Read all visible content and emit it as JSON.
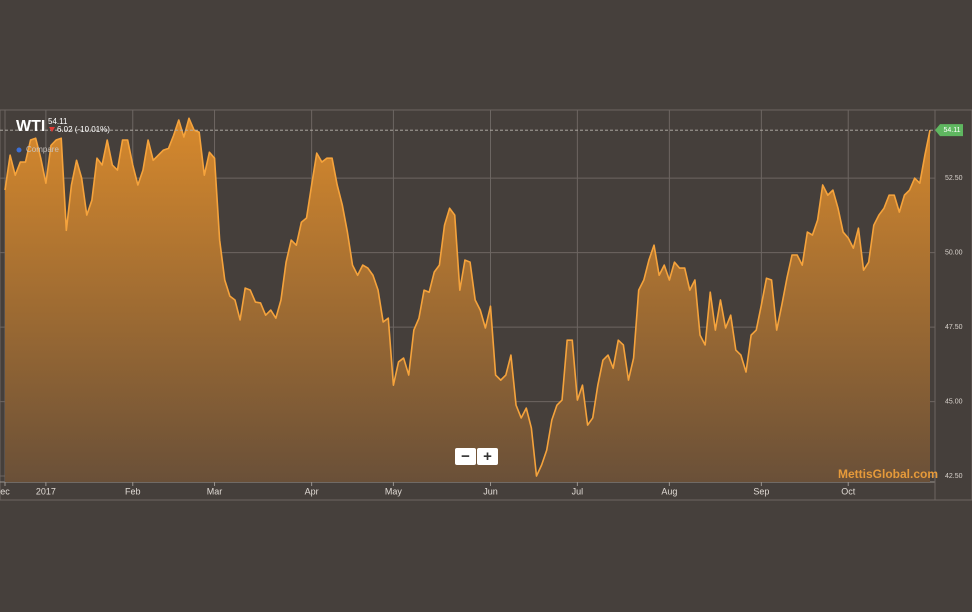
{
  "chart_data": {
    "type": "area",
    "title": "WTI",
    "change_label": "6.02 (-10.01%)",
    "compare_label": "Compare",
    "watermark": "MettisGlobal.com",
    "zoom_buttons": [
      "−",
      "+"
    ],
    "color": "#f5a33c",
    "fill_top": "#d98a2c",
    "fill_bottom": "#6a5038",
    "grid": true,
    "xlim": [
      0,
      181
    ],
    "xticks": [
      {
        "value": 0,
        "label": "ec"
      },
      {
        "value": 8,
        "label": "2017"
      },
      {
        "value": 25,
        "label": "Feb"
      },
      {
        "value": 41,
        "label": "Mar"
      },
      {
        "value": 60,
        "label": "Apr"
      },
      {
        "value": 76,
        "label": "May"
      },
      {
        "value": 95,
        "label": "Jun"
      },
      {
        "value": 112,
        "label": "Jul"
      },
      {
        "value": 130,
        "label": "Aug"
      },
      {
        "value": 148,
        "label": "Sep"
      },
      {
        "value": 165,
        "label": "Oct"
      }
    ],
    "ylim": [
      42.3,
      54.72
    ],
    "yticks": [
      {
        "value": 42.5,
        "label": "42.50"
      },
      {
        "value": 45,
        "label": "45.00"
      },
      {
        "value": 47.5,
        "label": "47.50"
      },
      {
        "value": 50,
        "label": "50.00"
      },
      {
        "value": 52.5,
        "label": "52.50"
      }
    ],
    "values": [
      52.1,
      53.27,
      52.6,
      53.04,
      53.04,
      53.78,
      53.84,
      53.17,
      52.33,
      53.6,
      53.78,
      53.84,
      50.75,
      52.27,
      53.1,
      52.5,
      51.26,
      51.76,
      53.17,
      52.94,
      53.78,
      52.94,
      52.77,
      53.78,
      53.78,
      52.94,
      52.27,
      52.77,
      53.78,
      53.1,
      53.27,
      53.44,
      53.5,
      53.94,
      54.45,
      53.88,
      54.51,
      54.11,
      54.04,
      52.6,
      53.37,
      53.17,
      50.42,
      49.08,
      48.54,
      48.41,
      47.74,
      48.81,
      48.74,
      48.34,
      48.31,
      47.9,
      48.07,
      47.8,
      48.41,
      49.68,
      50.42,
      50.25,
      51.02,
      51.16,
      52.27,
      53.34,
      53.04,
      53.17,
      53.17,
      52.27,
      51.6,
      50.69,
      49.58,
      49.24,
      49.58,
      49.48,
      49.24,
      48.74,
      47.67,
      47.8,
      45.55,
      46.33,
      46.46,
      45.89,
      47.4,
      47.8,
      48.74,
      48.67,
      49.35,
      49.58,
      50.92,
      51.49,
      51.26,
      48.74,
      49.75,
      49.68,
      48.41,
      48.07,
      47.47,
      48.2,
      45.89,
      45.72,
      45.89,
      46.56,
      44.88,
      44.45,
      44.78,
      44.11,
      42.5,
      42.87,
      43.37,
      44.38,
      44.88,
      45.05,
      47.06,
      47.06,
      45.05,
      45.55,
      44.21,
      44.45,
      45.55,
      46.39,
      46.56,
      46.12,
      47.06,
      46.9,
      45.72,
      46.46,
      48.74,
      49.08,
      49.75,
      50.25,
      49.24,
      49.58,
      49.08,
      49.68,
      49.48,
      49.48,
      48.74,
      49.08,
      47.23,
      46.9,
      48.67,
      47.4,
      48.41,
      47.47,
      47.9,
      46.73,
      46.56,
      45.99,
      47.23,
      47.4,
      48.24,
      49.14,
      49.08,
      47.4,
      48.24,
      49.14,
      49.92,
      49.92,
      49.58,
      50.69,
      50.59,
      51.09,
      52.27,
      51.93,
      52.1,
      51.49,
      50.69,
      50.49,
      50.15,
      50.82,
      49.41,
      49.68,
      50.92,
      51.26,
      51.49,
      51.93,
      51.93,
      51.36,
      51.93,
      52.1,
      52.5,
      52.33,
      53.27,
      54.11
    ]
  }
}
